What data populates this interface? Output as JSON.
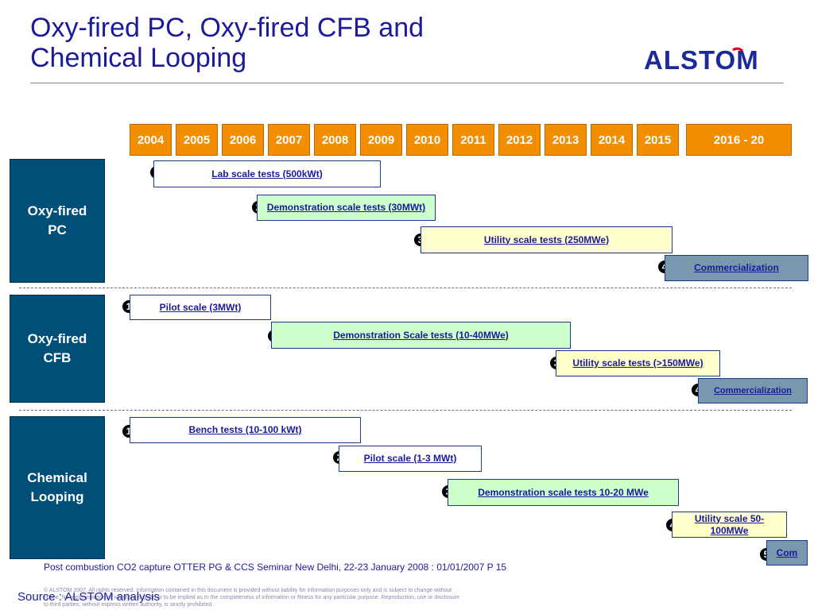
{
  "title": {
    "line1": "Oxy-fired PC, Oxy-fired CFB and",
    "line2": "Chemical Looping"
  },
  "logo": {
    "text": "ALSTOM",
    "color": "#1a2a9a",
    "accent": "#e2001a"
  },
  "timeline": {
    "years": [
      "2004",
      "2005",
      "2006",
      "2007",
      "2008",
      "2009",
      "2010",
      "2011",
      "2012",
      "2013",
      "2014",
      "2015",
      "2016 - 20"
    ]
  },
  "sections": [
    {
      "name": "Oxy-fired PC",
      "steps": [
        {
          "num": "1",
          "label": "Lab scale tests (500kWt)"
        },
        {
          "num": "2",
          "label": "Demonstration scale tests (30MWt)"
        },
        {
          "num": "3",
          "label": "Utility scale tests (250MWe)"
        },
        {
          "num": "4",
          "label": "Commercialization"
        }
      ]
    },
    {
      "name": "Oxy-fired CFB",
      "steps": [
        {
          "num": "1",
          "label": "Pilot scale (3MWt)"
        },
        {
          "num": "2",
          "label": "Demonstration Scale tests (10-40MWe)"
        },
        {
          "num": "3",
          "label": "Utility scale tests (>150MWe)"
        },
        {
          "num": "4",
          "label": "Commercialization"
        }
      ]
    },
    {
      "name": "Chemical Looping",
      "steps": [
        {
          "num": "1",
          "label": "Bench tests (10-100 kWt)"
        },
        {
          "num": "2",
          "label": "Pilot scale (1-3 MWt)"
        },
        {
          "num": "3",
          "label": "Demonstration scale tests 10-20 MWe"
        },
        {
          "num": "4",
          "label": "Utility scale 50-100MWe"
        },
        {
          "num": "5",
          "label": "Com"
        }
      ]
    }
  ],
  "footer": {
    "seminar": "Post combustion CO2 capture OTTER PG & CCS Seminar New Delhi, 22-23 January 2008 : 01/01/2007  P 15",
    "source": "Source : ALSTOM analysis",
    "copyright": "© ALSTOM 2007. All rights reserved. Information contained in this document is provided without liability for information purposes only and is subject to change without notice. No representation or warranty is given or to be implied as to the completeness of information or fitness for any particular purpose. Reproduction, use or disclosure to third parties, without express written authority, is strictly prohibited."
  }
}
